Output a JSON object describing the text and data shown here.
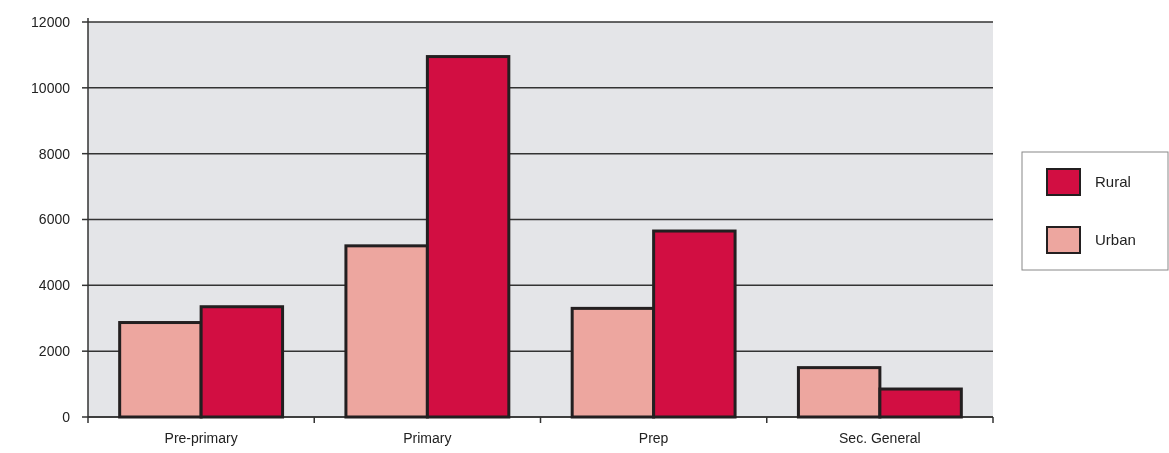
{
  "chart_data": {
    "type": "bar",
    "categories": [
      "Pre-primary",
      "Primary",
      "Prep",
      "Sec. General"
    ],
    "series": [
      {
        "name": "Urban",
        "color": "#eda69f",
        "values": [
          2870,
          5200,
          3300,
          1500
        ]
      },
      {
        "name": "Rural",
        "color": "#d20e42",
        "values": [
          3350,
          10950,
          5650,
          850
        ]
      }
    ],
    "ylim": [
      0,
      12000
    ],
    "yticks": [
      0,
      2000,
      4000,
      6000,
      8000,
      10000,
      12000
    ],
    "grid": "y",
    "legend": "right"
  }
}
